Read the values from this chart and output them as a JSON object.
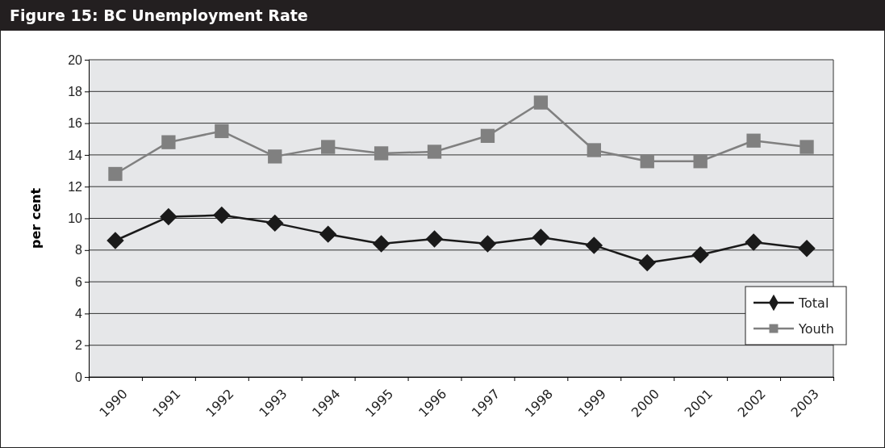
{
  "chart_data": {
    "type": "line",
    "title": "Figure 15: BC Unemployment Rate",
    "ylabel": "per cent",
    "categories": [
      "1990",
      "1991",
      "1992",
      "1993",
      "1994",
      "1995",
      "1996",
      "1997",
      "1998",
      "1999",
      "2000",
      "2001",
      "2002",
      "2003"
    ],
    "series": [
      {
        "name": "Total",
        "color": "#1a1a1a",
        "marker": "diamond",
        "values": [
          8.6,
          10.1,
          10.2,
          9.7,
          9.0,
          8.4,
          8.7,
          8.4,
          8.8,
          8.3,
          7.2,
          7.7,
          8.5,
          8.1
        ]
      },
      {
        "name": "Youth",
        "color": "#808080",
        "marker": "square",
        "values": [
          12.8,
          14.8,
          15.5,
          13.9,
          14.5,
          14.1,
          14.2,
          15.2,
          17.3,
          14.3,
          13.6,
          13.6,
          14.9,
          14.5
        ]
      }
    ],
    "ylim": [
      0,
      20
    ],
    "yticks": [
      0,
      2,
      4,
      6,
      8,
      10,
      12,
      14,
      16,
      18,
      20
    ],
    "grid": "y",
    "legend": "bottom right"
  }
}
